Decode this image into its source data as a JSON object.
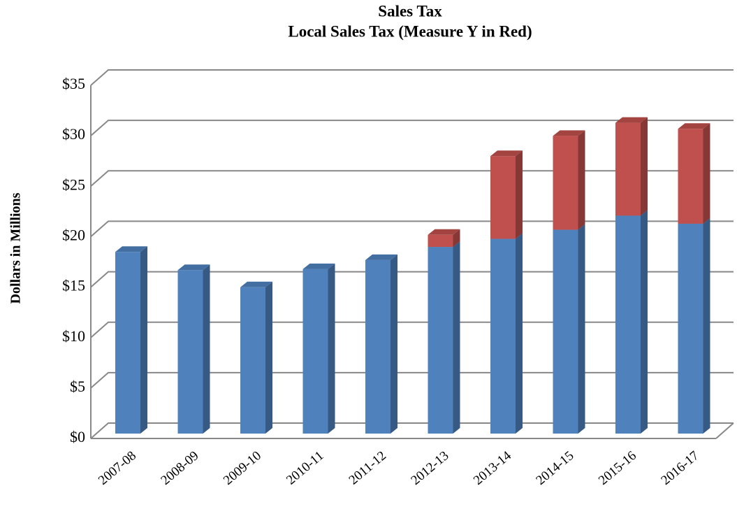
{
  "chart_data": {
    "type": "bar3d_stacked",
    "title": "Sales Tax",
    "subtitle": "Local Sales Tax (Measure Y in Red)",
    "y_label": "Dollars in Millions",
    "categories": [
      "2007-08",
      "2008-09",
      "2009-10",
      "2010-11",
      "2011-12",
      "2012-13",
      "2013-14",
      "2014-15",
      "2015-16",
      "2016-17"
    ],
    "series": [
      {
        "color": "#4f81bd",
        "values": [
          18,
          16.2,
          14.5,
          16.3,
          17.2,
          18.5,
          19.3,
          20.2,
          21.6,
          20.8
        ]
      },
      {
        "color": "#c0504d",
        "values": [
          null,
          null,
          null,
          null,
          null,
          1.2,
          8.2,
          9.3,
          9.2,
          9.4
        ]
      }
    ],
    "ylim": [
      0,
      35
    ],
    "yticks": [
      {
        "value": 0,
        "label": "$0"
      },
      {
        "value": 5,
        "label": "$5"
      },
      {
        "value": 10,
        "label": "$10"
      },
      {
        "value": 15,
        "label": "$15"
      },
      {
        "value": 20,
        "label": "$20"
      },
      {
        "value": 25,
        "label": "$25"
      },
      {
        "value": 30,
        "label": "$30"
      },
      {
        "value": 35,
        "label": "$35"
      }
    ],
    "grid": true
  }
}
